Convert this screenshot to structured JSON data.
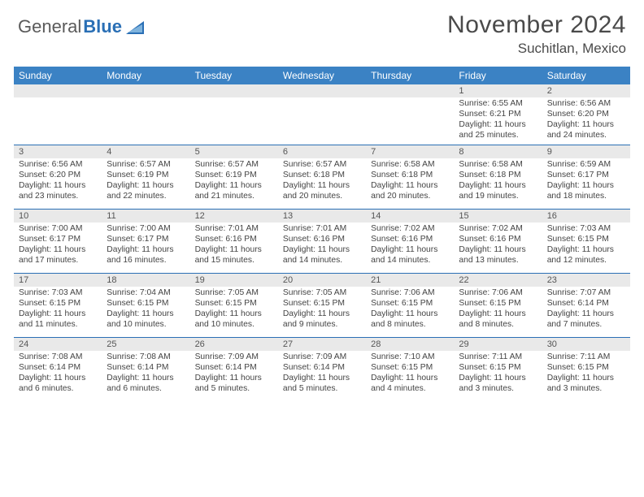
{
  "logo": {
    "text1": "General",
    "text2": "Blue"
  },
  "title": {
    "month": "November 2024",
    "location": "Suchitlan, Mexico"
  },
  "style": {
    "header_bg": "#3b82c4",
    "header_text": "#ffffff",
    "border_color": "#2a6fb5",
    "daynum_bg": "#e9e9e9",
    "logo_gray": "#5a5a5a",
    "logo_blue": "#2a6fb5",
    "title_color": "#4a4a4a",
    "body_text": "#444444",
    "font_family": "Arial",
    "header_fontsize": 12,
    "daynum_fontsize": 11,
    "cell_fontsize": 10.3,
    "month_fontsize": 30,
    "location_fontsize": 17
  },
  "days_of_week": [
    "Sunday",
    "Monday",
    "Tuesday",
    "Wednesday",
    "Thursday",
    "Friday",
    "Saturday"
  ],
  "weeks": [
    {
      "nums": [
        "",
        "",
        "",
        "",
        "",
        "1",
        "2"
      ],
      "cells": [
        {},
        {},
        {},
        {},
        {},
        {
          "sunrise": "Sunrise: 6:55 AM",
          "sunset": "Sunset: 6:21 PM",
          "d1": "Daylight: 11 hours",
          "d2": "and 25 minutes."
        },
        {
          "sunrise": "Sunrise: 6:56 AM",
          "sunset": "Sunset: 6:20 PM",
          "d1": "Daylight: 11 hours",
          "d2": "and 24 minutes."
        }
      ]
    },
    {
      "nums": [
        "3",
        "4",
        "5",
        "6",
        "7",
        "8",
        "9"
      ],
      "cells": [
        {
          "sunrise": "Sunrise: 6:56 AM",
          "sunset": "Sunset: 6:20 PM",
          "d1": "Daylight: 11 hours",
          "d2": "and 23 minutes."
        },
        {
          "sunrise": "Sunrise: 6:57 AM",
          "sunset": "Sunset: 6:19 PM",
          "d1": "Daylight: 11 hours",
          "d2": "and 22 minutes."
        },
        {
          "sunrise": "Sunrise: 6:57 AM",
          "sunset": "Sunset: 6:19 PM",
          "d1": "Daylight: 11 hours",
          "d2": "and 21 minutes."
        },
        {
          "sunrise": "Sunrise: 6:57 AM",
          "sunset": "Sunset: 6:18 PM",
          "d1": "Daylight: 11 hours",
          "d2": "and 20 minutes."
        },
        {
          "sunrise": "Sunrise: 6:58 AM",
          "sunset": "Sunset: 6:18 PM",
          "d1": "Daylight: 11 hours",
          "d2": "and 20 minutes."
        },
        {
          "sunrise": "Sunrise: 6:58 AM",
          "sunset": "Sunset: 6:18 PM",
          "d1": "Daylight: 11 hours",
          "d2": "and 19 minutes."
        },
        {
          "sunrise": "Sunrise: 6:59 AM",
          "sunset": "Sunset: 6:17 PM",
          "d1": "Daylight: 11 hours",
          "d2": "and 18 minutes."
        }
      ]
    },
    {
      "nums": [
        "10",
        "11",
        "12",
        "13",
        "14",
        "15",
        "16"
      ],
      "cells": [
        {
          "sunrise": "Sunrise: 7:00 AM",
          "sunset": "Sunset: 6:17 PM",
          "d1": "Daylight: 11 hours",
          "d2": "and 17 minutes."
        },
        {
          "sunrise": "Sunrise: 7:00 AM",
          "sunset": "Sunset: 6:17 PM",
          "d1": "Daylight: 11 hours",
          "d2": "and 16 minutes."
        },
        {
          "sunrise": "Sunrise: 7:01 AM",
          "sunset": "Sunset: 6:16 PM",
          "d1": "Daylight: 11 hours",
          "d2": "and 15 minutes."
        },
        {
          "sunrise": "Sunrise: 7:01 AM",
          "sunset": "Sunset: 6:16 PM",
          "d1": "Daylight: 11 hours",
          "d2": "and 14 minutes."
        },
        {
          "sunrise": "Sunrise: 7:02 AM",
          "sunset": "Sunset: 6:16 PM",
          "d1": "Daylight: 11 hours",
          "d2": "and 14 minutes."
        },
        {
          "sunrise": "Sunrise: 7:02 AM",
          "sunset": "Sunset: 6:16 PM",
          "d1": "Daylight: 11 hours",
          "d2": "and 13 minutes."
        },
        {
          "sunrise": "Sunrise: 7:03 AM",
          "sunset": "Sunset: 6:15 PM",
          "d1": "Daylight: 11 hours",
          "d2": "and 12 minutes."
        }
      ]
    },
    {
      "nums": [
        "17",
        "18",
        "19",
        "20",
        "21",
        "22",
        "23"
      ],
      "cells": [
        {
          "sunrise": "Sunrise: 7:03 AM",
          "sunset": "Sunset: 6:15 PM",
          "d1": "Daylight: 11 hours",
          "d2": "and 11 minutes."
        },
        {
          "sunrise": "Sunrise: 7:04 AM",
          "sunset": "Sunset: 6:15 PM",
          "d1": "Daylight: 11 hours",
          "d2": "and 10 minutes."
        },
        {
          "sunrise": "Sunrise: 7:05 AM",
          "sunset": "Sunset: 6:15 PM",
          "d1": "Daylight: 11 hours",
          "d2": "and 10 minutes."
        },
        {
          "sunrise": "Sunrise: 7:05 AM",
          "sunset": "Sunset: 6:15 PM",
          "d1": "Daylight: 11 hours",
          "d2": "and 9 minutes."
        },
        {
          "sunrise": "Sunrise: 7:06 AM",
          "sunset": "Sunset: 6:15 PM",
          "d1": "Daylight: 11 hours",
          "d2": "and 8 minutes."
        },
        {
          "sunrise": "Sunrise: 7:06 AM",
          "sunset": "Sunset: 6:15 PM",
          "d1": "Daylight: 11 hours",
          "d2": "and 8 minutes."
        },
        {
          "sunrise": "Sunrise: 7:07 AM",
          "sunset": "Sunset: 6:14 PM",
          "d1": "Daylight: 11 hours",
          "d2": "and 7 minutes."
        }
      ]
    },
    {
      "nums": [
        "24",
        "25",
        "26",
        "27",
        "28",
        "29",
        "30"
      ],
      "cells": [
        {
          "sunrise": "Sunrise: 7:08 AM",
          "sunset": "Sunset: 6:14 PM",
          "d1": "Daylight: 11 hours",
          "d2": "and 6 minutes."
        },
        {
          "sunrise": "Sunrise: 7:08 AM",
          "sunset": "Sunset: 6:14 PM",
          "d1": "Daylight: 11 hours",
          "d2": "and 6 minutes."
        },
        {
          "sunrise": "Sunrise: 7:09 AM",
          "sunset": "Sunset: 6:14 PM",
          "d1": "Daylight: 11 hours",
          "d2": "and 5 minutes."
        },
        {
          "sunrise": "Sunrise: 7:09 AM",
          "sunset": "Sunset: 6:14 PM",
          "d1": "Daylight: 11 hours",
          "d2": "and 5 minutes."
        },
        {
          "sunrise": "Sunrise: 7:10 AM",
          "sunset": "Sunset: 6:15 PM",
          "d1": "Daylight: 11 hours",
          "d2": "and 4 minutes."
        },
        {
          "sunrise": "Sunrise: 7:11 AM",
          "sunset": "Sunset: 6:15 PM",
          "d1": "Daylight: 11 hours",
          "d2": "and 3 minutes."
        },
        {
          "sunrise": "Sunrise: 7:11 AM",
          "sunset": "Sunset: 6:15 PM",
          "d1": "Daylight: 11 hours",
          "d2": "and 3 minutes."
        }
      ]
    }
  ]
}
